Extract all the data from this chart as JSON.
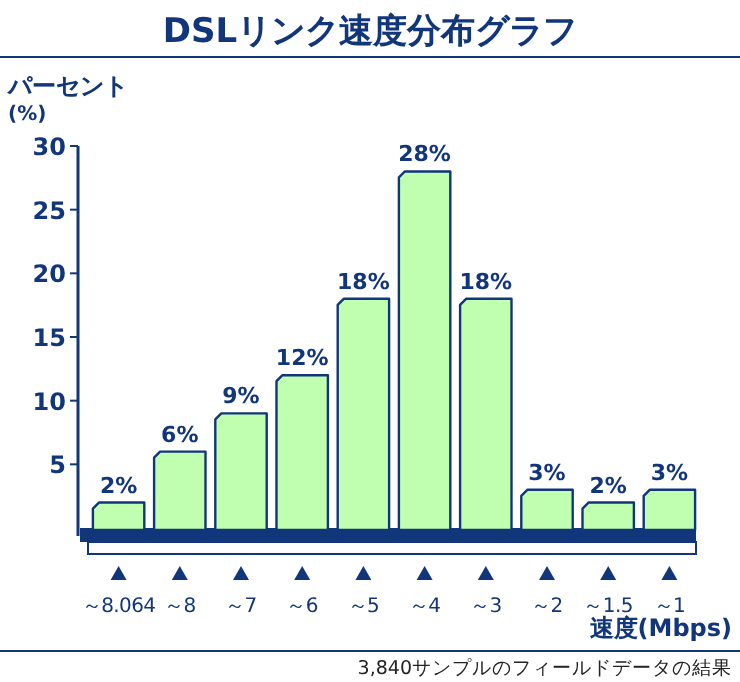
{
  "chart_data": {
    "type": "bar",
    "title": "DSLリンク速度分布グラフ",
    "ylabel": "パーセント\n(%)",
    "xlabel": "速度(Mbps)",
    "categories": [
      "～8.064",
      "～8",
      "～7",
      "～6",
      "～5",
      "～4",
      "～3",
      "～2",
      "～1.5",
      "～1"
    ],
    "values": [
      2,
      6,
      9,
      12,
      18,
      28,
      18,
      3,
      2,
      3
    ],
    "value_labels": [
      "2%",
      "6%",
      "9%",
      "12%",
      "18%",
      "28%",
      "18%",
      "3%",
      "2%",
      "3%"
    ],
    "color": "#c0ffb0",
    "ylim": [
      0,
      30
    ],
    "yticks": [
      5,
      10,
      15,
      20,
      25,
      30
    ],
    "annotations": [
      "3,840サンプルのフィールドデータの結果"
    ]
  }
}
